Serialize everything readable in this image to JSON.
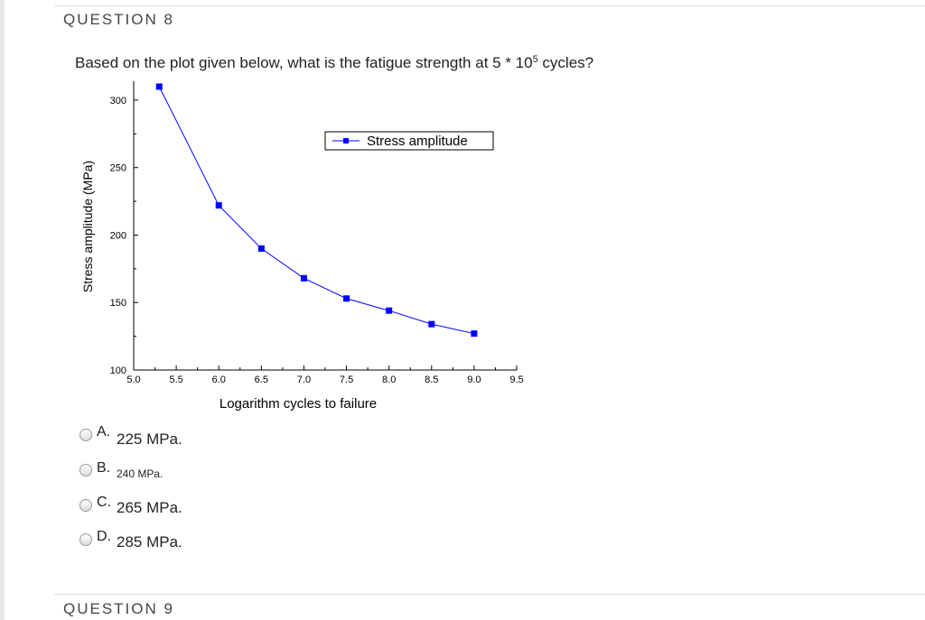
{
  "question8": {
    "header": "QUESTION 8",
    "text_before": "Based on the plot given below, what is the fatigue strength at 5 * 10",
    "superscript": "5",
    "text_after": " cycles?"
  },
  "question9": {
    "header": "QUESTION 9"
  },
  "options": [
    {
      "letter": "A.",
      "text": "225 MPa."
    },
    {
      "letter": "B.",
      "text": "240 MPa."
    },
    {
      "letter": "C.",
      "text": "265 MPa."
    },
    {
      "letter": "D.",
      "text": "285 MPa."
    }
  ],
  "chart_data": {
    "type": "line",
    "xlabel": "Logarithm cycles to failure",
    "ylabel": "Stress amplitude (MPa)",
    "xlim": [
      5.0,
      9.5
    ],
    "ylim": [
      100,
      310
    ],
    "x_ticks": [
      "5.0",
      "5.5",
      "6.0",
      "6.5",
      "7.0",
      "7.5",
      "8.0",
      "8.5",
      "9.0",
      "9.5"
    ],
    "y_ticks": [
      "100",
      "150",
      "200",
      "250",
      "300"
    ],
    "series": [
      {
        "name": "Stress amplitude",
        "color": "#0000ff",
        "x": [
          5.3,
          6.0,
          6.5,
          7.0,
          7.5,
          8.0,
          8.5,
          9.0
        ],
        "y": [
          310,
          222,
          190,
          168,
          153,
          144,
          134,
          127
        ]
      }
    ],
    "legend": "top-right",
    "grid": false
  }
}
